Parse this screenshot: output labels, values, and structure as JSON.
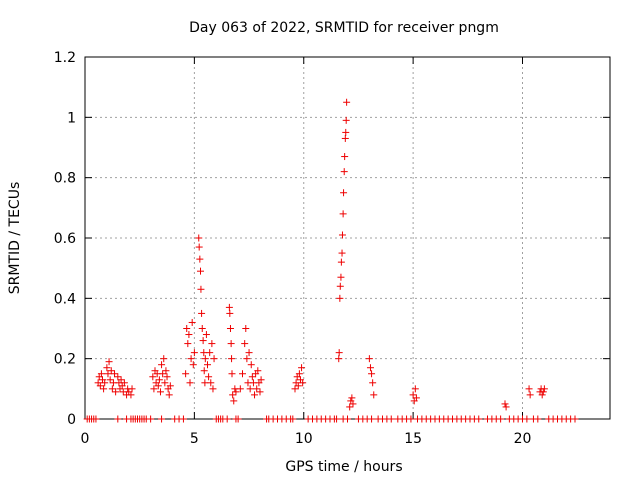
{
  "chart_data": {
    "type": "scatter",
    "title": "Day 063 of 2022, SRMTID for receiver pngm",
    "xlabel": "GPS time / hours",
    "ylabel": "SRMTID / TECUs",
    "xlim": [
      0,
      24
    ],
    "ylim": [
      0,
      1.2
    ],
    "xticks": [
      0,
      5,
      10,
      15,
      20
    ],
    "yticks": [
      0,
      0.2,
      0.4,
      0.6,
      0.8,
      1,
      1.2
    ],
    "xtick_labels": [
      "0",
      "5",
      "10",
      "15",
      "20"
    ],
    "ytick_labels": [
      "0",
      "0.2",
      "0.4",
      "0.6",
      "0.8",
      "1",
      "1.2"
    ],
    "grid": true,
    "marker": "+",
    "color": "#ee0000",
    "series": [
      {
        "name": "SRMTID",
        "points": [
          [
            0.6,
            0.12
          ],
          [
            0.65,
            0.14
          ],
          [
            0.7,
            0.11
          ],
          [
            0.75,
            0.15
          ],
          [
            0.8,
            0.13
          ],
          [
            0.85,
            0.1
          ],
          [
            0.9,
            0.12
          ],
          [
            1.0,
            0.17
          ],
          [
            1.05,
            0.15
          ],
          [
            1.1,
            0.19
          ],
          [
            1.15,
            0.13
          ],
          [
            1.2,
            0.16
          ],
          [
            1.25,
            0.1
          ],
          [
            1.3,
            0.12
          ],
          [
            1.35,
            0.15
          ],
          [
            1.4,
            0.09
          ],
          [
            1.5,
            0.14
          ],
          [
            1.55,
            0.12
          ],
          [
            1.6,
            0.1
          ],
          [
            1.65,
            0.13
          ],
          [
            1.7,
            0.11
          ],
          [
            1.75,
            0.09
          ],
          [
            1.8,
            0.12
          ],
          [
            1.9,
            0.08
          ],
          [
            1.95,
            0.1
          ],
          [
            2.0,
            0.09
          ],
          [
            2.1,
            0.08
          ],
          [
            2.15,
            0.1
          ],
          [
            3.1,
            0.14
          ],
          [
            3.15,
            0.1
          ],
          [
            3.2,
            0.16
          ],
          [
            3.25,
            0.12
          ],
          [
            3.3,
            0.15
          ],
          [
            3.35,
            0.11
          ],
          [
            3.4,
            0.13
          ],
          [
            3.45,
            0.09
          ],
          [
            3.5,
            0.18
          ],
          [
            3.55,
            0.15
          ],
          [
            3.6,
            0.2
          ],
          [
            3.65,
            0.12
          ],
          [
            3.7,
            0.16
          ],
          [
            3.75,
            0.14
          ],
          [
            3.8,
            0.1
          ],
          [
            3.85,
            0.08
          ],
          [
            3.9,
            0.11
          ],
          [
            4.6,
            0.15
          ],
          [
            4.65,
            0.3
          ],
          [
            4.7,
            0.25
          ],
          [
            4.75,
            0.28
          ],
          [
            4.8,
            0.12
          ],
          [
            4.85,
            0.2
          ],
          [
            4.9,
            0.32
          ],
          [
            4.95,
            0.18
          ],
          [
            5.0,
            0.22
          ],
          [
            5.2,
            0.6
          ],
          [
            5.22,
            0.57
          ],
          [
            5.25,
            0.53
          ],
          [
            5.28,
            0.49
          ],
          [
            5.3,
            0.43
          ],
          [
            5.33,
            0.35
          ],
          [
            5.36,
            0.3
          ],
          [
            5.4,
            0.26
          ],
          [
            5.43,
            0.22
          ],
          [
            5.45,
            0.16
          ],
          [
            5.48,
            0.12
          ],
          [
            5.5,
            0.2
          ],
          [
            5.55,
            0.28
          ],
          [
            5.6,
            0.18
          ],
          [
            5.65,
            0.14
          ],
          [
            5.7,
            0.22
          ],
          [
            5.75,
            0.12
          ],
          [
            5.8,
            0.25
          ],
          [
            5.85,
            0.1
          ],
          [
            5.9,
            0.2
          ],
          [
            6.6,
            0.37
          ],
          [
            6.62,
            0.35
          ],
          [
            6.65,
            0.3
          ],
          [
            6.68,
            0.25
          ],
          [
            6.7,
            0.2
          ],
          [
            6.72,
            0.15
          ],
          [
            6.75,
            0.08
          ],
          [
            6.8,
            0.06
          ],
          [
            6.85,
            0.1
          ],
          [
            6.9,
            0.09
          ],
          [
            7.1,
            0.1
          ],
          [
            7.2,
            0.15
          ],
          [
            7.3,
            0.25
          ],
          [
            7.35,
            0.3
          ],
          [
            7.4,
            0.2
          ],
          [
            7.45,
            0.12
          ],
          [
            7.5,
            0.22
          ],
          [
            7.55,
            0.1
          ],
          [
            7.6,
            0.18
          ],
          [
            7.65,
            0.14
          ],
          [
            7.7,
            0.12
          ],
          [
            7.75,
            0.08
          ],
          [
            7.8,
            0.15
          ],
          [
            7.85,
            0.1
          ],
          [
            7.9,
            0.16
          ],
          [
            7.95,
            0.12
          ],
          [
            8.0,
            0.09
          ],
          [
            8.05,
            0.13
          ],
          [
            9.6,
            0.1
          ],
          [
            9.65,
            0.12
          ],
          [
            9.7,
            0.14
          ],
          [
            9.75,
            0.11
          ],
          [
            9.8,
            0.15
          ],
          [
            9.85,
            0.13
          ],
          [
            9.9,
            0.17
          ],
          [
            9.95,
            0.12
          ],
          [
            11.6,
            0.2
          ],
          [
            11.62,
            0.22
          ],
          [
            11.65,
            0.4
          ],
          [
            11.67,
            0.44
          ],
          [
            11.7,
            0.47
          ],
          [
            11.72,
            0.52
          ],
          [
            11.75,
            0.55
          ],
          [
            11.77,
            0.61
          ],
          [
            11.8,
            0.68
          ],
          [
            11.82,
            0.75
          ],
          [
            11.85,
            0.82
          ],
          [
            11.87,
            0.87
          ],
          [
            11.9,
            0.93
          ],
          [
            11.92,
            0.95
          ],
          [
            11.94,
            0.99
          ],
          [
            11.96,
            1.05
          ],
          [
            12.1,
            0.04
          ],
          [
            12.15,
            0.06
          ],
          [
            12.2,
            0.07
          ],
          [
            12.25,
            0.05
          ],
          [
            13.0,
            0.2
          ],
          [
            13.05,
            0.17
          ],
          [
            13.1,
            0.15
          ],
          [
            13.15,
            0.12
          ],
          [
            13.2,
            0.08
          ],
          [
            15.0,
            0.08
          ],
          [
            15.05,
            0.06
          ],
          [
            15.1,
            0.1
          ],
          [
            15.15,
            0.07
          ],
          [
            19.2,
            0.05
          ],
          [
            19.25,
            0.04
          ],
          [
            20.3,
            0.1
          ],
          [
            20.35,
            0.08
          ],
          [
            20.8,
            0.09
          ],
          [
            20.85,
            0.1
          ],
          [
            20.9,
            0.08
          ],
          [
            20.95,
            0.09
          ],
          [
            21.0,
            0.1
          ]
        ]
      }
    ],
    "baseline_zero_hours": [
      0.1,
      0.2,
      0.3,
      0.4,
      0.5,
      1.5,
      1.9,
      2.1,
      2.2,
      2.3,
      2.4,
      2.5,
      2.6,
      2.7,
      2.8,
      3.0,
      3.5,
      4.1,
      4.3,
      4.5,
      6.0,
      6.1,
      6.2,
      6.3,
      6.5,
      6.9,
      7.0,
      8.3,
      8.4,
      8.6,
      8.8,
      9.0,
      9.2,
      9.4,
      9.5,
      10.2,
      10.4,
      10.6,
      10.8,
      11.0,
      11.2,
      11.4,
      11.5,
      11.8,
      12.0,
      12.5,
      12.7,
      12.9,
      13.1,
      13.4,
      13.6,
      13.8,
      14.0,
      14.3,
      14.5,
      14.7,
      14.9,
      15.2,
      15.4,
      15.6,
      15.8,
      16.0,
      16.2,
      16.4,
      16.6,
      16.8,
      17.0,
      17.2,
      17.4,
      17.6,
      17.8,
      18.0,
      18.4,
      18.6,
      18.8,
      19.0,
      19.4,
      19.6,
      19.8,
      20.0,
      20.2,
      20.5,
      20.7,
      21.2,
      21.4,
      21.6,
      21.8,
      22.0,
      22.2,
      22.4
    ]
  }
}
